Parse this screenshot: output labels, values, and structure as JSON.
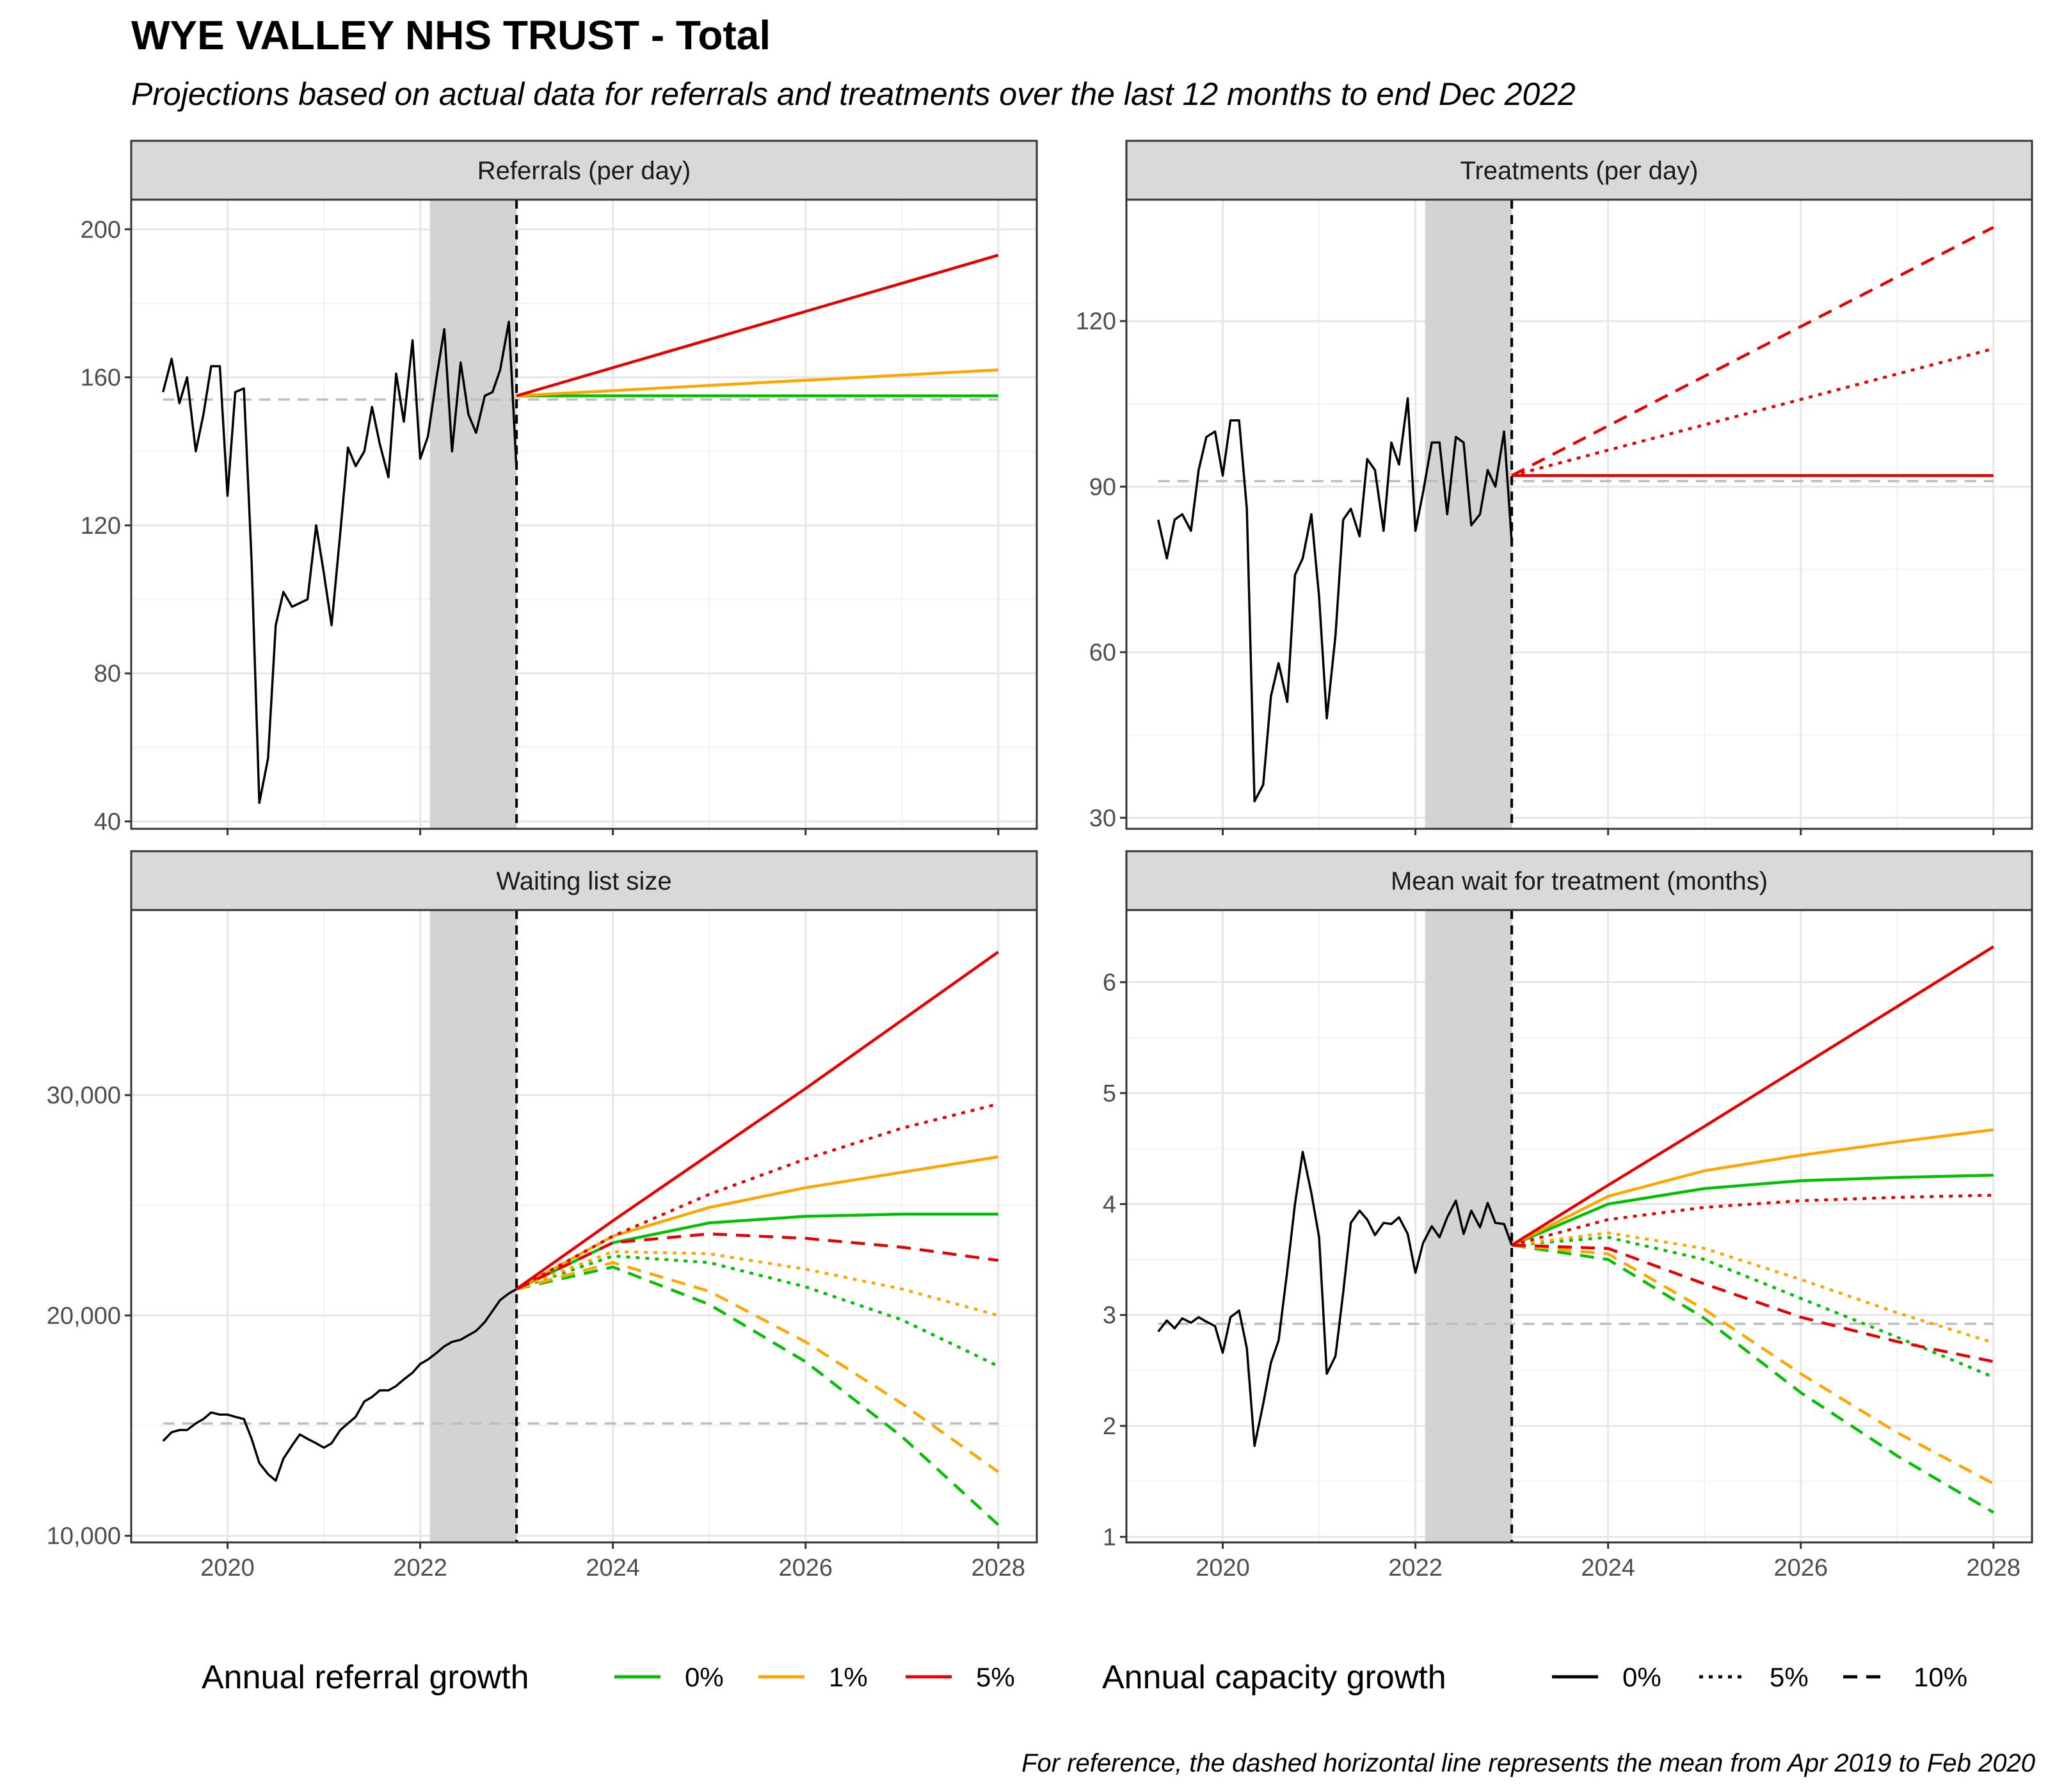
{
  "title": "WYE VALLEY NHS TRUST - Total",
  "subtitle": "Projections based on actual data for referrals and treatments over the last 12 months to end Dec 2022",
  "caption": "For reference, the dashed horizontal line represents the mean from Apr 2019 to Feb 2020",
  "colors": {
    "growth_0": "#00c000",
    "growth_1": "#ffa500",
    "growth_5": "#e60000",
    "history": "#000000",
    "reference": "#bdbdbd",
    "shade": "#d3d3d3",
    "strip": "#d9d9d9"
  },
  "legend": {
    "referral": {
      "title": "Annual referral growth",
      "items": [
        {
          "label": "0%",
          "color": "#00c000"
        },
        {
          "label": "1%",
          "color": "#ffa500"
        },
        {
          "label": "5%",
          "color": "#e60000"
        }
      ]
    },
    "capacity": {
      "title": "Annual capacity growth",
      "items": [
        {
          "label": "0%",
          "dash": "solid"
        },
        {
          "label": "5%",
          "dash": "dotted"
        },
        {
          "label": "10%",
          "dash": "dashed"
        }
      ]
    }
  },
  "chart_data": [
    {
      "type": "line",
      "title": "Referrals (per day)",
      "xlim": [
        2019.0,
        2028.4
      ],
      "ylim": [
        38,
        208
      ],
      "x_ticks": [
        2020,
        2022,
        2024,
        2026,
        2028
      ],
      "y_ticks": [
        40,
        80,
        120,
        160,
        200
      ],
      "y_tick_labels": [
        "40",
        "80",
        "120",
        "160",
        "200"
      ],
      "reference_mean": 154,
      "shaded_period": [
        2022.1,
        2023.0
      ],
      "projection_start": 2023.0,
      "history": {
        "x": [
          2019.33,
          2019.42,
          2019.5,
          2019.58,
          2019.67,
          2019.75,
          2019.83,
          2019.92,
          2020.0,
          2020.08,
          2020.17,
          2020.25,
          2020.33,
          2020.42,
          2020.5,
          2020.58,
          2020.67,
          2020.75,
          2020.83,
          2020.92,
          2021.0,
          2021.08,
          2021.17,
          2021.25,
          2021.33,
          2021.42,
          2021.5,
          2021.58,
          2021.67,
          2021.75,
          2021.83,
          2021.92,
          2022.0,
          2022.08,
          2022.17,
          2022.25,
          2022.33,
          2022.42,
          2022.5,
          2022.58,
          2022.67,
          2022.75,
          2022.83,
          2022.92,
          2023.0
        ],
        "y": [
          156,
          165,
          153,
          160,
          140,
          150,
          163,
          163,
          128,
          156,
          157,
          110,
          45,
          57,
          93,
          102,
          98,
          99,
          100,
          120,
          107,
          93,
          118,
          141,
          136,
          140,
          152,
          142,
          133,
          161,
          148,
          170,
          138,
          144,
          160,
          173,
          140,
          164,
          150,
          145,
          155,
          156,
          162,
          175,
          135
        ]
      },
      "series": [
        {
          "name": "0%",
          "growth_key": "growth_0",
          "dash": "solid",
          "x": [
            2023,
            2028
          ],
          "y": [
            155,
            155
          ]
        },
        {
          "name": "1%",
          "growth_key": "growth_1",
          "dash": "solid",
          "x": [
            2023,
            2028
          ],
          "y": [
            155,
            162
          ]
        },
        {
          "name": "5%",
          "growth_key": "growth_5",
          "dash": "solid",
          "x": [
            2023,
            2028
          ],
          "y": [
            155,
            193
          ]
        }
      ]
    },
    {
      "type": "line",
      "title": "Treatments (per day)",
      "xlim": [
        2019.0,
        2028.4
      ],
      "ylim": [
        28,
        142
      ],
      "x_ticks": [
        2020,
        2022,
        2024,
        2026,
        2028
      ],
      "y_ticks": [
        30,
        60,
        90,
        120
      ],
      "y_tick_labels": [
        "30",
        "60",
        "90",
        "120"
      ],
      "reference_mean": 91,
      "shaded_period": [
        2022.1,
        2023.0
      ],
      "projection_start": 2023.0,
      "history": {
        "x": [
          2019.33,
          2019.42,
          2019.5,
          2019.58,
          2019.67,
          2019.75,
          2019.83,
          2019.92,
          2020.0,
          2020.08,
          2020.17,
          2020.25,
          2020.33,
          2020.42,
          2020.5,
          2020.58,
          2020.67,
          2020.75,
          2020.83,
          2020.92,
          2021.0,
          2021.08,
          2021.17,
          2021.25,
          2021.33,
          2021.42,
          2021.5,
          2021.58,
          2021.67,
          2021.75,
          2021.83,
          2021.92,
          2022.0,
          2022.08,
          2022.17,
          2022.25,
          2022.33,
          2022.42,
          2022.5,
          2022.58,
          2022.67,
          2022.75,
          2022.83,
          2022.92,
          2023.0
        ],
        "y": [
          84,
          77,
          84,
          85,
          82,
          93,
          99,
          100,
          92,
          102,
          102,
          86,
          33,
          36,
          52,
          58,
          51,
          74,
          77,
          85,
          70,
          48,
          63,
          84,
          86,
          81,
          95,
          93,
          82,
          98,
          94,
          106,
          82,
          89,
          98,
          98,
          85,
          99,
          98,
          83,
          85,
          93,
          90,
          100,
          80
        ]
      },
      "series": [
        {
          "name": "0%",
          "growth_key": "growth_5",
          "dash": "solid",
          "x": [
            2023,
            2028
          ],
          "y": [
            92,
            92
          ]
        },
        {
          "name": "5%",
          "growth_key": "growth_5",
          "dash": "dotted",
          "x": [
            2023,
            2028
          ],
          "y": [
            92,
            115
          ]
        },
        {
          "name": "10%",
          "growth_key": "growth_5",
          "dash": "dashed",
          "x": [
            2023,
            2028
          ],
          "y": [
            92,
            137
          ]
        }
      ]
    },
    {
      "type": "line",
      "title": "Waiting list size",
      "xlim": [
        2019.0,
        2028.4
      ],
      "ylim": [
        9700,
        38400
      ],
      "x_ticks": [
        2020,
        2022,
        2024,
        2026,
        2028
      ],
      "x_tick_labels": [
        "2020",
        "2022",
        "2024",
        "2026",
        "2028"
      ],
      "y_ticks": [
        10000,
        20000,
        30000
      ],
      "y_tick_labels": [
        "10,000",
        "20,000",
        "30,000"
      ],
      "reference_mean": 15100,
      "shaded_period": [
        2022.1,
        2023.0
      ],
      "projection_start": 2023.0,
      "history": {
        "x": [
          2019.33,
          2019.42,
          2019.5,
          2019.58,
          2019.67,
          2019.75,
          2019.83,
          2019.92,
          2020.0,
          2020.08,
          2020.17,
          2020.25,
          2020.33,
          2020.42,
          2020.5,
          2020.58,
          2020.67,
          2020.75,
          2020.83,
          2020.92,
          2021.0,
          2021.08,
          2021.17,
          2021.25,
          2021.33,
          2021.42,
          2021.5,
          2021.58,
          2021.67,
          2021.75,
          2021.83,
          2021.92,
          2022.0,
          2022.08,
          2022.17,
          2022.25,
          2022.33,
          2022.42,
          2022.5,
          2022.58,
          2022.67,
          2022.75,
          2022.83,
          2022.92,
          2023.0
        ],
        "y": [
          14300,
          14700,
          14800,
          14800,
          15100,
          15300,
          15600,
          15500,
          15500,
          15400,
          15300,
          14400,
          13300,
          12800,
          12500,
          13500,
          14100,
          14600,
          14400,
          14200,
          14000,
          14200,
          14800,
          15100,
          15400,
          16100,
          16300,
          16600,
          16600,
          16800,
          17100,
          17400,
          17800,
          18000,
          18300,
          18600,
          18800,
          18900,
          19100,
          19300,
          19700,
          20200,
          20700,
          21000,
          21200
        ]
      },
      "series": [
        {
          "name": "0% / 0%",
          "growth_key": "growth_0",
          "dash": "solid",
          "x": [
            2023,
            2024,
            2025,
            2026,
            2027,
            2028
          ],
          "y": [
            21200,
            23300,
            24200,
            24500,
            24600,
            24600
          ]
        },
        {
          "name": "1% / 0%",
          "growth_key": "growth_1",
          "dash": "solid",
          "x": [
            2023,
            2024,
            2025,
            2026,
            2027,
            2028
          ],
          "y": [
            21200,
            23600,
            24900,
            25800,
            26500,
            27200
          ]
        },
        {
          "name": "5% / 0%",
          "growth_key": "growth_5",
          "dash": "solid",
          "x": [
            2023,
            2024,
            2025,
            2026,
            2027,
            2028
          ],
          "y": [
            21200,
            24300,
            27300,
            30300,
            33400,
            36500
          ]
        },
        {
          "name": "0% / 5%",
          "growth_key": "growth_0",
          "dash": "dotted",
          "x": [
            2023,
            2024,
            2025,
            2026,
            2027,
            2028
          ],
          "y": [
            21200,
            22700,
            22400,
            21300,
            19800,
            17700
          ]
        },
        {
          "name": "1% / 5%",
          "growth_key": "growth_1",
          "dash": "dotted",
          "x": [
            2023,
            2024,
            2025,
            2026,
            2027,
            2028
          ],
          "y": [
            21200,
            22900,
            22800,
            22100,
            21200,
            20000
          ]
        },
        {
          "name": "5% / 5%",
          "growth_key": "growth_5",
          "dash": "dotted",
          "x": [
            2023,
            2024,
            2025,
            2026,
            2027,
            2028
          ],
          "y": [
            21200,
            23600,
            25500,
            27100,
            28500,
            29600
          ]
        },
        {
          "name": "0% / 10%",
          "growth_key": "growth_0",
          "dash": "dashed",
          "x": [
            2023,
            2024,
            2025,
            2026,
            2027,
            2028
          ],
          "y": [
            21200,
            22200,
            20500,
            17900,
            14500,
            10500
          ]
        },
        {
          "name": "1% / 10%",
          "growth_key": "growth_1",
          "dash": "dashed",
          "x": [
            2023,
            2024,
            2025,
            2026,
            2027,
            2028
          ],
          "y": [
            21200,
            22400,
            21100,
            18800,
            16000,
            12900
          ]
        },
        {
          "name": "5% / 10%",
          "growth_key": "growth_5",
          "dash": "dashed",
          "x": [
            2023,
            2024,
            2025,
            2026,
            2027,
            2028
          ],
          "y": [
            21200,
            23300,
            23700,
            23500,
            23100,
            22500
          ]
        }
      ]
    },
    {
      "type": "line",
      "title": "Mean wait for treatment (months)",
      "xlim": [
        2019.0,
        2028.4
      ],
      "ylim": [
        0.95,
        6.65
      ],
      "x_ticks": [
        2020,
        2022,
        2024,
        2026,
        2028
      ],
      "x_tick_labels": [
        "2020",
        "2022",
        "2024",
        "2026",
        "2028"
      ],
      "y_ticks": [
        1,
        2,
        3,
        4,
        5,
        6
      ],
      "y_tick_labels": [
        "1",
        "2",
        "3",
        "4",
        "5",
        "6"
      ],
      "reference_mean": 2.92,
      "shaded_period": [
        2022.1,
        2023.0
      ],
      "projection_start": 2023.0,
      "history": {
        "x": [
          2019.33,
          2019.42,
          2019.5,
          2019.58,
          2019.67,
          2019.75,
          2019.83,
          2019.92,
          2020.0,
          2020.08,
          2020.17,
          2020.25,
          2020.33,
          2020.42,
          2020.5,
          2020.58,
          2020.67,
          2020.75,
          2020.83,
          2020.92,
          2021.0,
          2021.08,
          2021.17,
          2021.25,
          2021.33,
          2021.42,
          2021.5,
          2021.58,
          2021.67,
          2021.75,
          2021.83,
          2021.92,
          2022.0,
          2022.08,
          2022.17,
          2022.25,
          2022.33,
          2022.42,
          2022.5,
          2022.58,
          2022.67,
          2022.75,
          2022.83,
          2022.92,
          2023.0
        ],
        "y": [
          2.85,
          2.95,
          2.88,
          2.97,
          2.93,
          2.98,
          2.94,
          2.9,
          2.66,
          2.98,
          3.04,
          2.7,
          1.82,
          2.2,
          2.57,
          2.77,
          3.4,
          4.0,
          4.47,
          4.1,
          3.7,
          2.47,
          2.63,
          3.2,
          3.83,
          3.94,
          3.86,
          3.72,
          3.83,
          3.82,
          3.88,
          3.73,
          3.38,
          3.65,
          3.8,
          3.7,
          3.88,
          4.03,
          3.73,
          3.94,
          3.79,
          4.01,
          3.83,
          3.82,
          3.63
        ]
      },
      "series": [
        {
          "name": "0% / 0%",
          "growth_key": "growth_0",
          "dash": "solid",
          "x": [
            2023,
            2024,
            2025,
            2026,
            2027,
            2028
          ],
          "y": [
            3.63,
            4.0,
            4.14,
            4.21,
            4.24,
            4.26
          ]
        },
        {
          "name": "1% / 0%",
          "growth_key": "growth_1",
          "dash": "solid",
          "x": [
            2023,
            2024,
            2025,
            2026,
            2027,
            2028
          ],
          "y": [
            3.63,
            4.07,
            4.3,
            4.44,
            4.56,
            4.67
          ]
        },
        {
          "name": "5% / 0%",
          "growth_key": "growth_5",
          "dash": "solid",
          "x": [
            2023,
            2024,
            2025,
            2026,
            2027,
            2028
          ],
          "y": [
            3.63,
            4.17,
            4.7,
            5.24,
            5.78,
            6.32
          ]
        },
        {
          "name": "0% / 5%",
          "growth_key": "growth_0",
          "dash": "dotted",
          "x": [
            2023,
            2024,
            2025,
            2026,
            2027,
            2028
          ],
          "y": [
            3.63,
            3.7,
            3.5,
            3.15,
            2.8,
            2.44
          ]
        },
        {
          "name": "1% / 5%",
          "growth_key": "growth_1",
          "dash": "dotted",
          "x": [
            2023,
            2024,
            2025,
            2026,
            2027,
            2028
          ],
          "y": [
            3.63,
            3.74,
            3.6,
            3.32,
            3.02,
            2.75
          ]
        },
        {
          "name": "5% / 5%",
          "growth_key": "growth_5",
          "dash": "dotted",
          "x": [
            2023,
            2024,
            2025,
            2026,
            2027,
            2028
          ],
          "y": [
            3.63,
            3.86,
            3.97,
            4.03,
            4.06,
            4.08
          ]
        },
        {
          "name": "0% / 10%",
          "growth_key": "growth_0",
          "dash": "dashed",
          "x": [
            2023,
            2024,
            2025,
            2026,
            2027,
            2028
          ],
          "y": [
            3.63,
            3.5,
            2.97,
            2.3,
            1.73,
            1.22
          ]
        },
        {
          "name": "1% / 10%",
          "growth_key": "growth_1",
          "dash": "dashed",
          "x": [
            2023,
            2024,
            2025,
            2026,
            2027,
            2028
          ],
          "y": [
            3.63,
            3.55,
            3.05,
            2.47,
            1.94,
            1.48
          ]
        },
        {
          "name": "5% / 10%",
          "growth_key": "growth_5",
          "dash": "dashed",
          "x": [
            2023,
            2024,
            2025,
            2026,
            2027,
            2028
          ],
          "y": [
            3.63,
            3.6,
            3.28,
            2.98,
            2.76,
            2.58
          ]
        }
      ]
    }
  ]
}
